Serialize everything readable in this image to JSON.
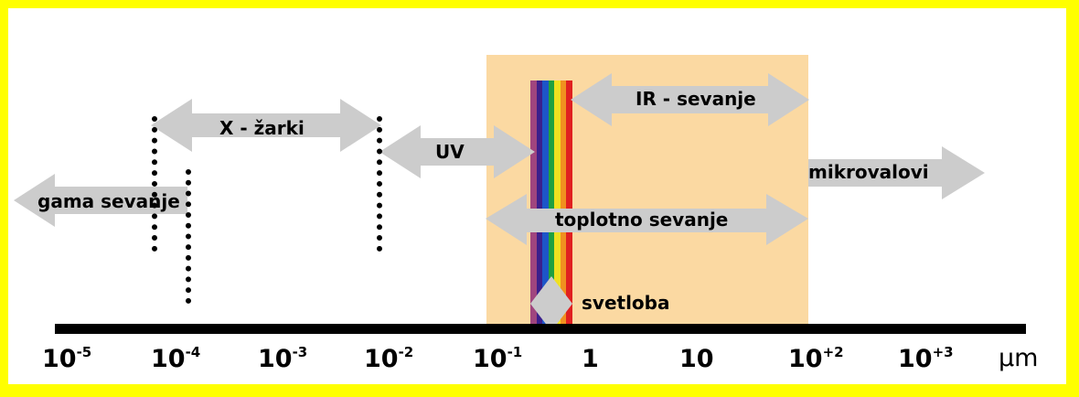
{
  "labels": {
    "gamma": "gama sevanje",
    "xray": "X - žarki",
    "uv": "UV",
    "ir": "IR - sevanje",
    "microwaves": "mikrovalovi",
    "thermal": "toplotno sevanje",
    "visible": "svetloba"
  },
  "axis": {
    "ticks": [
      {
        "base": "10",
        "exp": "-5"
      },
      {
        "base": "10",
        "exp": "-4"
      },
      {
        "base": "10",
        "exp": "-3"
      },
      {
        "base": "10",
        "exp": "-2"
      },
      {
        "base": "10",
        "exp": "-1"
      },
      {
        "base": "1",
        "exp": ""
      },
      {
        "base": "10",
        "exp": ""
      },
      {
        "base": "10",
        "exp": "+2"
      },
      {
        "base": "10",
        "exp": "+3"
      }
    ],
    "unit": "μm"
  },
  "colors": {
    "border": "#ffff00",
    "thermal_region": "#fbd9a2",
    "arrow": "#cccccc",
    "spectrum": [
      "#a0457e",
      "#3b1f8c",
      "#1d55c8",
      "#20a040",
      "#f0e020",
      "#f09020",
      "#e02020"
    ]
  }
}
